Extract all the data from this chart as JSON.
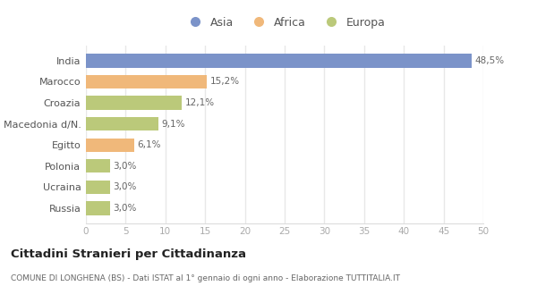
{
  "categories": [
    "India",
    "Marocco",
    "Croazia",
    "Macedonia d/N.",
    "Egitto",
    "Polonia",
    "Ucraina",
    "Russia"
  ],
  "values": [
    48.5,
    15.2,
    12.1,
    9.1,
    6.1,
    3.0,
    3.0,
    3.0
  ],
  "colors": [
    "#7b93c9",
    "#f0b87a",
    "#bbc97a",
    "#bbc97a",
    "#f0b87a",
    "#bbc97a",
    "#bbc97a",
    "#bbc97a"
  ],
  "labels": [
    "48,5%",
    "15,2%",
    "12,1%",
    "9,1%",
    "6,1%",
    "3,0%",
    "3,0%",
    "3,0%"
  ],
  "legend_labels": [
    "Asia",
    "Africa",
    "Europa"
  ],
  "legend_colors": [
    "#7b93c9",
    "#f0b87a",
    "#bbc97a"
  ],
  "xlim": [
    0,
    50
  ],
  "xticks": [
    0,
    5,
    10,
    15,
    20,
    25,
    30,
    35,
    40,
    45,
    50
  ],
  "title": "Cittadini Stranieri per Cittadinanza",
  "subtitle": "COMUNE DI LONGHENA (BS) - Dati ISTAT al 1° gennaio di ogni anno - Elaborazione TUTTITALIA.IT",
  "bg_color": "#ffffff",
  "grid_color": "#e8e8e8",
  "bar_height": 0.65
}
